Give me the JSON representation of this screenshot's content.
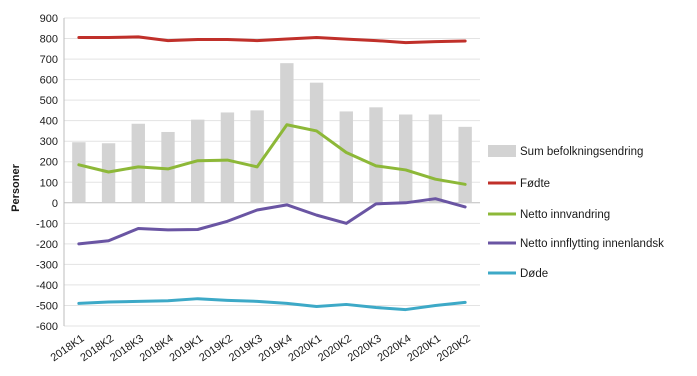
{
  "chart_data": {
    "type": "bar",
    "ylabel": "Personer",
    "ylim": [
      -600,
      900
    ],
    "yticks": [
      900,
      800,
      700,
      600,
      500,
      400,
      300,
      200,
      100,
      0,
      -100,
      -200,
      -300,
      -400,
      -500,
      -600
    ],
    "grid": true,
    "legend_position": "right",
    "categories": [
      "2018K1",
      "2018K2",
      "2018K3",
      "2018K4",
      "2019K1",
      "2019K2",
      "2019K3",
      "2019K4",
      "2020K1",
      "2020K2",
      "2020K3",
      "2020K4",
      "2020K1",
      "2020K2"
    ],
    "series": [
      {
        "name": "Sum befolkningsendring",
        "kind": "bar",
        "color": "#d3d3d3",
        "values": [
          295,
          290,
          385,
          345,
          405,
          440,
          450,
          680,
          585,
          445,
          465,
          430,
          430,
          370
        ]
      },
      {
        "name": "Fødte",
        "kind": "line",
        "color": "#c0302a",
        "values": [
          805,
          805,
          808,
          790,
          795,
          795,
          790,
          798,
          805,
          797,
          790,
          780,
          785,
          788
        ]
      },
      {
        "name": "Netto innvandring",
        "kind": "line",
        "color": "#8db838",
        "values": [
          185,
          150,
          175,
          165,
          205,
          208,
          175,
          380,
          350,
          245,
          180,
          160,
          115,
          90
        ]
      },
      {
        "name": "Netto innflytting innenlandsk",
        "kind": "line",
        "color": "#6a55a3",
        "values": [
          -200,
          -185,
          -125,
          -132,
          -130,
          -90,
          -35,
          -10,
          -60,
          -100,
          -5,
          0,
          20,
          -20
        ]
      },
      {
        "name": "Døde",
        "kind": "line",
        "color": "#3da9c7",
        "values": [
          -490,
          -483,
          -480,
          -477,
          -467,
          -475,
          -480,
          -490,
          -505,
          -495,
          -510,
          -520,
          -500,
          -485
        ]
      }
    ]
  }
}
